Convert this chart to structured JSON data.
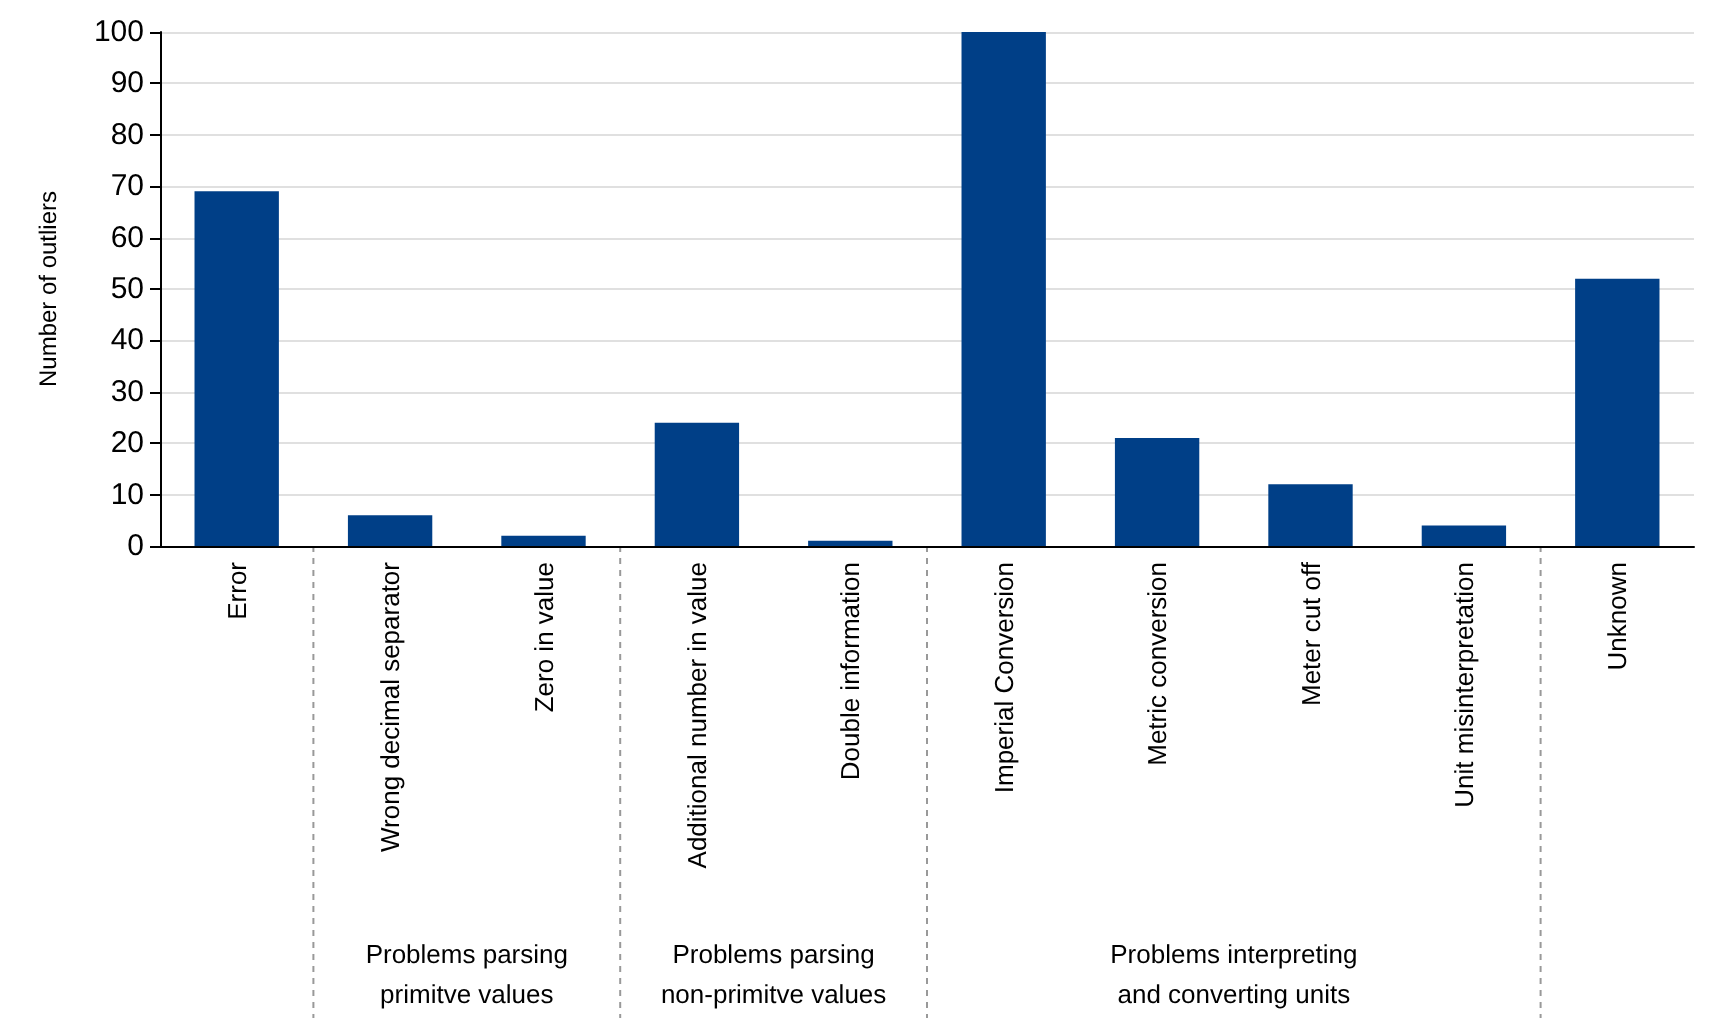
{
  "chart_data": {
    "type": "bar",
    "ylabel": "Number of outliers",
    "categories": [
      "Error",
      "Wrong decimal separator",
      "Zero in value",
      "Additional number in value",
      "Double information",
      "Imperial Conversion",
      "Metric conversion",
      "Meter cut off",
      "Unit misinterpretation",
      "Unknown"
    ],
    "values": [
      69,
      6,
      2,
      24,
      1,
      100,
      21,
      12,
      4,
      52
    ],
    "color": "#003f87",
    "ylim": [
      0,
      100
    ],
    "yticks": [
      0,
      10,
      20,
      30,
      40,
      50,
      60,
      70,
      80,
      90,
      100
    ],
    "grid": "y",
    "annotations": [
      "Problems parsing\nprimitve values",
      "Problems parsing\nnon-primitve values",
      "Problems interpreting\nand converting units"
    ]
  }
}
